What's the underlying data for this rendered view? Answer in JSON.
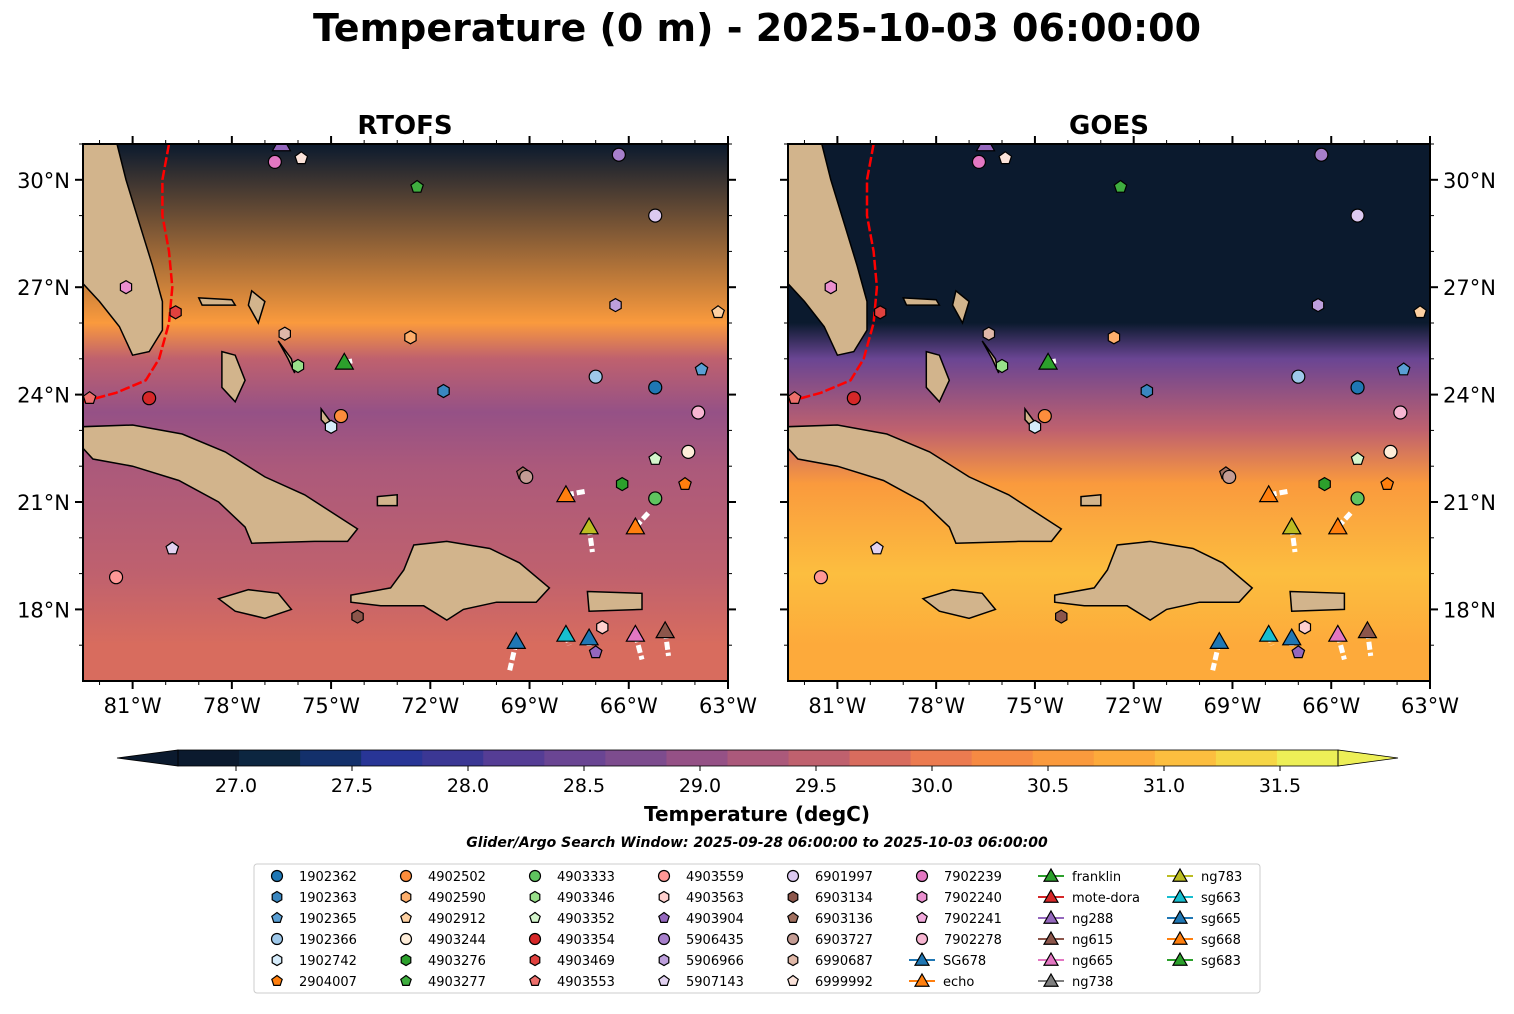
{
  "title": "Temperature (0 m) - 2025-10-03 06:00:00",
  "colors": {
    "land": "#d2b48c",
    "track": "#ffffff",
    "gulf_stream": "#ff0000",
    "cmap": [
      "#0b1a2e",
      "#0c2640",
      "#13306b",
      "#283596",
      "#3b3794",
      "#553d95",
      "#6a4593",
      "#7d4c8e",
      "#955186",
      "#ab597b",
      "#bf616e",
      "#d86c5e",
      "#ec7b50",
      "#f68a43",
      "#fa9a3d",
      "#fdaa3b",
      "#fcbe3f",
      "#f6d646",
      "#edef57"
    ]
  },
  "chart_data": [
    {
      "type": "heatmap",
      "title": "RTOFS",
      "variable": "Temperature (degC)",
      "x_ticks": [
        "81°W",
        "78°W",
        "75°W",
        "72°W",
        "69°W",
        "66°W",
        "63°W"
      ],
      "y_ticks": [
        "30°N",
        "27°N",
        "24°N",
        "21°N",
        "18°N"
      ],
      "xlim": [
        -82.5,
        -63.0
      ],
      "ylim": [
        16.0,
        31.0
      ],
      "gradient": [
        [
          31.0,
          26.5
        ],
        [
          26.0,
          30.5
        ],
        [
          25.0,
          29.6
        ],
        [
          23.5,
          29.0
        ],
        [
          22.0,
          29.3
        ],
        [
          19.0,
          29.6
        ],
        [
          17.0,
          29.8
        ],
        [
          16.0,
          29.9
        ]
      ]
    },
    {
      "type": "heatmap",
      "title": "GOES",
      "variable": "Temperature (degC)",
      "x_ticks": [
        "81°W",
        "78°W",
        "75°W",
        "72°W",
        "69°W",
        "66°W",
        "63°W"
      ],
      "y_ticks": [
        "30°N",
        "27°N",
        "24°N",
        "21°N",
        "18°N"
      ],
      "xlim": [
        -82.5,
        -63.0
      ],
      "ylim": [
        16.0,
        31.0
      ],
      "gradient": [
        [
          31.0,
          26.8
        ],
        [
          26.0,
          27.0
        ],
        [
          25.0,
          28.5
        ],
        [
          23.0,
          29.5
        ],
        [
          21.5,
          30.6
        ],
        [
          19.0,
          31.0
        ],
        [
          17.0,
          30.9
        ],
        [
          16.0,
          30.8
        ]
      ]
    }
  ],
  "colorbar": {
    "label": "Temperature (degC)",
    "ticks": [
      "27.0",
      "27.5",
      "28.0",
      "28.5",
      "29.0",
      "29.5",
      "30.0",
      "30.5",
      "31.0",
      "31.5"
    ],
    "range": [
      26.75,
      31.75
    ]
  },
  "subtitle": "Glider/Argo Search Window: 2025-09-28 06:00:00 to 2025-10-03 06:00:00",
  "legend": {
    "columns": [
      [
        {
          "label": "1902362",
          "marker": "circle",
          "color": "#1f77b4"
        },
        {
          "label": "1902363",
          "marker": "hexagon",
          "color": "#3a87c0"
        },
        {
          "label": "1902365",
          "marker": "pentagon",
          "color": "#5a9fd4"
        },
        {
          "label": "1902366",
          "marker": "circle",
          "color": "#9ec8ea"
        },
        {
          "label": "1902742",
          "marker": "hexagon",
          "color": "#d6ecfb"
        },
        {
          "label": "2904007",
          "marker": "pentagon",
          "color": "#ff7f0e"
        }
      ],
      [
        {
          "label": "4902502",
          "marker": "circle",
          "color": "#fd8d3c"
        },
        {
          "label": "4902590",
          "marker": "hexagon",
          "color": "#fdae6b"
        },
        {
          "label": "4902912",
          "marker": "pentagon",
          "color": "#fdd0a2"
        },
        {
          "label": "4903244",
          "marker": "circle",
          "color": "#feedd9"
        },
        {
          "label": "4903276",
          "marker": "hexagon",
          "color": "#2ca02c"
        },
        {
          "label": "4903277",
          "marker": "pentagon",
          "color": "#3fae3f"
        }
      ],
      [
        {
          "label": "4903333",
          "marker": "circle",
          "color": "#5fc35f"
        },
        {
          "label": "4903346",
          "marker": "hexagon",
          "color": "#98df8a"
        },
        {
          "label": "4903352",
          "marker": "pentagon",
          "color": "#d4f5cc"
        },
        {
          "label": "4903354",
          "marker": "circle",
          "color": "#d62728"
        },
        {
          "label": "4903469",
          "marker": "hexagon",
          "color": "#e0413e"
        },
        {
          "label": "4903553",
          "marker": "pentagon",
          "color": "#ed6f6b"
        }
      ],
      [
        {
          "label": "4903559",
          "marker": "circle",
          "color": "#ff9896"
        },
        {
          "label": "4903563",
          "marker": "hexagon",
          "color": "#ffd0ce"
        },
        {
          "label": "4903904",
          "marker": "pentagon",
          "color": "#9467bd"
        },
        {
          "label": "5906435",
          "marker": "circle",
          "color": "#a77fcb"
        },
        {
          "label": "5906966",
          "marker": "hexagon",
          "color": "#bd9fdc"
        },
        {
          "label": "5907143",
          "marker": "pentagon",
          "color": "#e2d2f1"
        }
      ],
      [
        {
          "label": "6901997",
          "marker": "circle",
          "color": "#dcc9f0"
        },
        {
          "label": "6903134",
          "marker": "hexagon",
          "color": "#8c564b"
        },
        {
          "label": "6903136",
          "marker": "pentagon",
          "color": "#a1705f"
        },
        {
          "label": "6903727",
          "marker": "circle",
          "color": "#c49c94"
        },
        {
          "label": "6990687",
          "marker": "hexagon",
          "color": "#e0b8a8"
        },
        {
          "label": "6999992",
          "marker": "pentagon",
          "color": "#fbe3da"
        }
      ],
      [
        {
          "label": "7902239",
          "marker": "circle",
          "color": "#e377c2"
        },
        {
          "label": "7902240",
          "marker": "hexagon",
          "color": "#ea8fcf"
        },
        {
          "label": "7902241",
          "marker": "pentagon",
          "color": "#f2a9dc"
        },
        {
          "label": "7902278",
          "marker": "circle",
          "color": "#f7b6d2"
        },
        {
          "label": "SG678",
          "marker": "triangle-line",
          "color": "#1f77b4"
        },
        {
          "label": "echo",
          "marker": "triangle-line",
          "color": "#ff7f0e"
        }
      ],
      [
        {
          "label": "franklin",
          "marker": "triangle-line",
          "color": "#2ca02c"
        },
        {
          "label": "mote-dora",
          "marker": "triangle-line",
          "color": "#d62728"
        },
        {
          "label": "ng288",
          "marker": "triangle-line",
          "color": "#9467bd"
        },
        {
          "label": "ng615",
          "marker": "triangle-line",
          "color": "#8c564b"
        },
        {
          "label": "ng665",
          "marker": "triangle-line",
          "color": "#e377c2"
        },
        {
          "label": "ng738",
          "marker": "triangle-line",
          "color": "#7f7f7f"
        }
      ],
      [
        {
          "label": "ng783",
          "marker": "triangle-line",
          "color": "#bcbd22"
        },
        {
          "label": "sg663",
          "marker": "triangle-line",
          "color": "#17becf"
        },
        {
          "label": "sg665",
          "marker": "triangle-line",
          "color": "#1f77b4"
        },
        {
          "label": "sg668",
          "marker": "triangle-line",
          "color": "#ff7f0e"
        },
        {
          "label": "sg683",
          "marker": "triangle-line",
          "color": "#2ca02c"
        }
      ]
    ]
  },
  "argo_floats": [
    {
      "id": "1902362",
      "lon": -65.2,
      "lat": 24.2
    },
    {
      "id": "1902363",
      "lon": -71.6,
      "lat": 24.1
    },
    {
      "id": "1902365",
      "lon": -63.8,
      "lat": 24.7
    },
    {
      "id": "1902366",
      "lon": -67.0,
      "lat": 24.5
    },
    {
      "id": "1902742",
      "lon": -75.0,
      "lat": 23.1
    },
    {
      "id": "2904007",
      "lon": -64.3,
      "lat": 21.5
    },
    {
      "id": "4902502",
      "lon": -74.7,
      "lat": 23.4
    },
    {
      "id": "4902590",
      "lon": -72.6,
      "lat": 25.6
    },
    {
      "id": "4902912",
      "lon": -63.3,
      "lat": 26.3
    },
    {
      "id": "4903244",
      "lon": -64.2,
      "lat": 22.4
    },
    {
      "id": "4903276",
      "lon": -66.2,
      "lat": 21.5
    },
    {
      "id": "4903277",
      "lon": -72.4,
      "lat": 29.8
    },
    {
      "id": "4903333",
      "lon": -65.2,
      "lat": 21.1
    },
    {
      "id": "4903346",
      "lon": -76.0,
      "lat": 24.8
    },
    {
      "id": "4903352",
      "lon": -65.2,
      "lat": 22.2
    },
    {
      "id": "4903354",
      "lon": -80.5,
      "lat": 23.9
    },
    {
      "id": "4903469",
      "lon": -79.7,
      "lat": 26.3
    },
    {
      "id": "4903553",
      "lon": -82.3,
      "lat": 23.9
    },
    {
      "id": "4903559",
      "lon": -81.5,
      "lat": 18.9
    },
    {
      "id": "4903563",
      "lon": -66.8,
      "lat": 17.5
    },
    {
      "id": "4903904",
      "lon": -67.0,
      "lat": 16.8
    },
    {
      "id": "5906435",
      "lon": -66.3,
      "lat": 30.7
    },
    {
      "id": "5906966",
      "lon": -66.4,
      "lat": 26.5
    },
    {
      "id": "5907143",
      "lon": -79.8,
      "lat": 19.7
    },
    {
      "id": "6901997",
      "lon": -65.2,
      "lat": 29.0
    },
    {
      "id": "6903134",
      "lon": -74.2,
      "lat": 17.8
    },
    {
      "id": "6903136",
      "lon": -69.2,
      "lat": 21.8
    },
    {
      "id": "6903727",
      "lon": -69.1,
      "lat": 21.7
    },
    {
      "id": "6990687",
      "lon": -76.4,
      "lat": 25.7
    },
    {
      "id": "6999992",
      "lon": -75.9,
      "lat": 30.6
    },
    {
      "id": "7902239",
      "lon": -76.7,
      "lat": 30.5
    },
    {
      "id": "7902278",
      "lon": -63.9,
      "lat": 23.5
    },
    {
      "id": "7902240",
      "lon": -81.2,
      "lat": 27.0
    }
  ],
  "gliders": [
    {
      "id": "franklin",
      "lon": -74.6,
      "lat": 24.9,
      "track": [
        [
          -74.6,
          24.9
        ],
        [
          -74.3,
          24.95
        ]
      ]
    },
    {
      "id": "echo",
      "lon": -67.9,
      "lat": 21.2,
      "track": [
        [
          -67.9,
          21.2
        ],
        [
          -67.3,
          21.3
        ]
      ]
    },
    {
      "id": "ng783",
      "lon": -67.2,
      "lat": 20.3,
      "track": [
        [
          -67.2,
          20.3
        ],
        [
          -67.1,
          19.6
        ]
      ]
    },
    {
      "id": "sg668",
      "lon": -65.8,
      "lat": 20.3,
      "track": [
        [
          -65.8,
          20.3
        ],
        [
          -65.4,
          20.7
        ]
      ]
    },
    {
      "id": "SG678",
      "lon": -69.4,
      "lat": 17.1,
      "track": [
        [
          -69.4,
          17.1
        ],
        [
          -69.6,
          16.3
        ]
      ]
    },
    {
      "id": "sg663",
      "lon": -67.9,
      "lat": 17.3,
      "track": [
        [
          -67.9,
          17.3
        ],
        [
          -67.8,
          17.0
        ]
      ]
    },
    {
      "id": "sg665",
      "lon": -67.2,
      "lat": 17.2,
      "track": [
        [
          -67.2,
          17.2
        ],
        [
          -67.2,
          16.9
        ]
      ]
    },
    {
      "id": "ng665",
      "lon": -65.8,
      "lat": 17.3,
      "track": [
        [
          -65.8,
          17.3
        ],
        [
          -65.6,
          16.6
        ]
      ]
    },
    {
      "id": "ng615",
      "lon": -64.9,
      "lat": 17.4,
      "track": [
        [
          -64.9,
          17.4
        ],
        [
          -64.8,
          16.7
        ]
      ]
    },
    {
      "id": "ng288",
      "lon": -76.5,
      "lat": 31.0,
      "track": []
    }
  ],
  "gulf_stream": [
    [
      -82.5,
      23.8
    ],
    [
      -81.5,
      24.05
    ],
    [
      -80.6,
      24.4
    ],
    [
      -80.2,
      25.0
    ],
    [
      -79.9,
      26.0
    ],
    [
      -79.8,
      27.0
    ],
    [
      -79.9,
      28.0
    ],
    [
      -80.1,
      29.0
    ],
    [
      -80.1,
      30.0
    ],
    [
      -79.9,
      31.0
    ]
  ]
}
